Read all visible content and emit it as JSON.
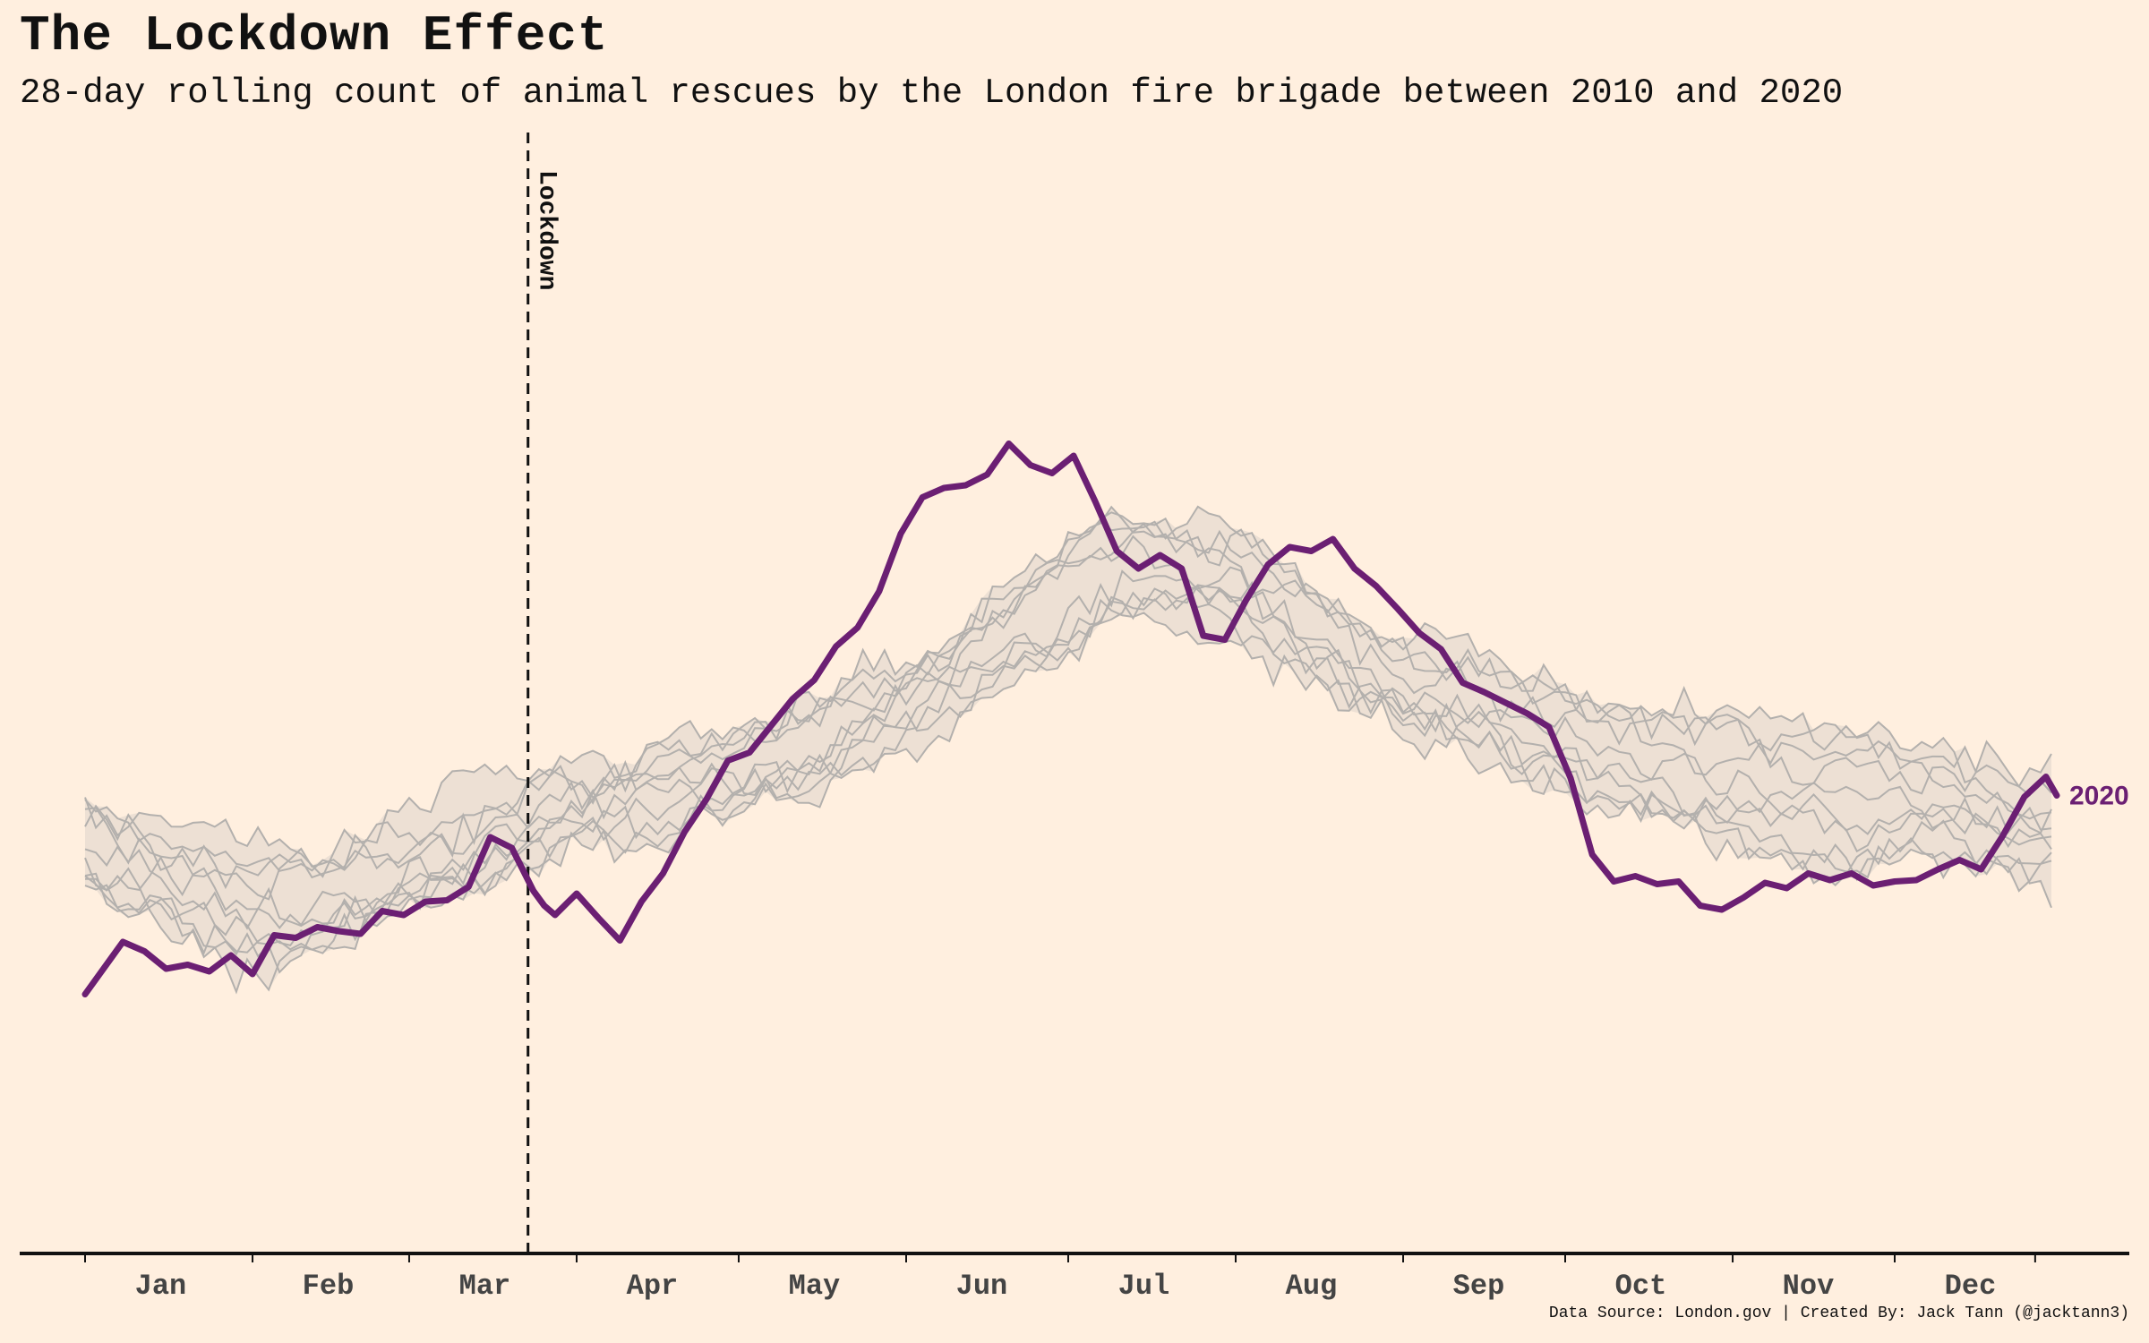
{
  "title": "The Lockdown Effect",
  "subtitle": "28-day rolling count of animal rescues by the London fire brigade between 2010 and 2020",
  "caption": "Data Source: London.gov | Created By: Jack Tann (@jacktann3)",
  "colors": {
    "background": "#ffefdf",
    "highlight": "#6b1f73",
    "past_years": "#b3b0ad",
    "band": "#ede0d4",
    "axis": "#111111",
    "month_label": "#444444"
  },
  "chart_data": {
    "type": "line",
    "title": "The Lockdown Effect",
    "subtitle": "28-day rolling count of animal rescues by the London fire brigade between 2010 and 2020",
    "x_axis": {
      "unit": "day of year",
      "range": [
        1,
        366
      ],
      "tick_labels": [
        "Jan",
        "Feb",
        "Mar",
        "Apr",
        "May",
        "Jun",
        "Jul",
        "Aug",
        "Sep",
        "Oct",
        "Nov",
        "Dec"
      ],
      "tick_label_days": [
        15,
        46,
        75,
        106,
        136,
        167,
        197,
        228,
        259,
        289,
        320,
        350
      ],
      "boundary_ticks": [
        1,
        32,
        61,
        92,
        122,
        153,
        183,
        214,
        245,
        275,
        306,
        336,
        362
      ]
    },
    "y_axis": {
      "range": [
        0,
        600
      ],
      "visible": false
    },
    "grid": false,
    "annotation": {
      "label": "Lockdown",
      "day": 83,
      "style": "dashed vertical line"
    },
    "highlight_series": {
      "name": "2020",
      "x": [
        1,
        8,
        12,
        16,
        20,
        24,
        28,
        32,
        36,
        40,
        44,
        48,
        52,
        56,
        60,
        64,
        68,
        72,
        76,
        80,
        84,
        86,
        88,
        92,
        96,
        100,
        104,
        108,
        112,
        116,
        120,
        124,
        128,
        132,
        136,
        140,
        144,
        148,
        152,
        156,
        160,
        164,
        168,
        172,
        176,
        180,
        184,
        188,
        192,
        196,
        200,
        204,
        208,
        212,
        216,
        220,
        224,
        228,
        232,
        236,
        240,
        244,
        248,
        252,
        256,
        260,
        264,
        268,
        272,
        276,
        280,
        284,
        288,
        292,
        296,
        300,
        304,
        308,
        312,
        316,
        320,
        324,
        328,
        332,
        336,
        340,
        344,
        348,
        352,
        356,
        360,
        364,
        366
      ],
      "y": [
        193,
        232,
        225,
        212,
        215,
        210,
        222,
        208,
        237,
        235,
        243,
        240,
        238,
        255,
        252,
        262,
        263,
        273,
        310,
        302,
        270,
        259,
        252,
        268,
        250,
        233,
        262,
        283,
        314,
        338,
        367,
        373,
        393,
        413,
        427,
        452,
        466,
        493,
        536,
        563,
        570,
        572,
        580,
        603,
        587,
        581,
        594,
        560,
        523,
        510,
        520,
        510,
        460,
        457,
        487,
        513,
        526,
        523,
        532,
        510,
        497,
        480,
        462,
        450,
        425,
        418,
        410,
        402,
        392,
        354,
        297,
        277,
        281,
        275,
        277,
        259,
        256,
        265,
        276,
        272,
        283,
        278,
        283,
        274,
        277,
        278,
        286,
        293,
        286,
        311,
        340,
        355,
        341
      ]
    },
    "past_years": {
      "description": "background series, one per year, not individually labelled",
      "count": 10,
      "range_band": "shaded min-max envelope across the past years"
    }
  }
}
